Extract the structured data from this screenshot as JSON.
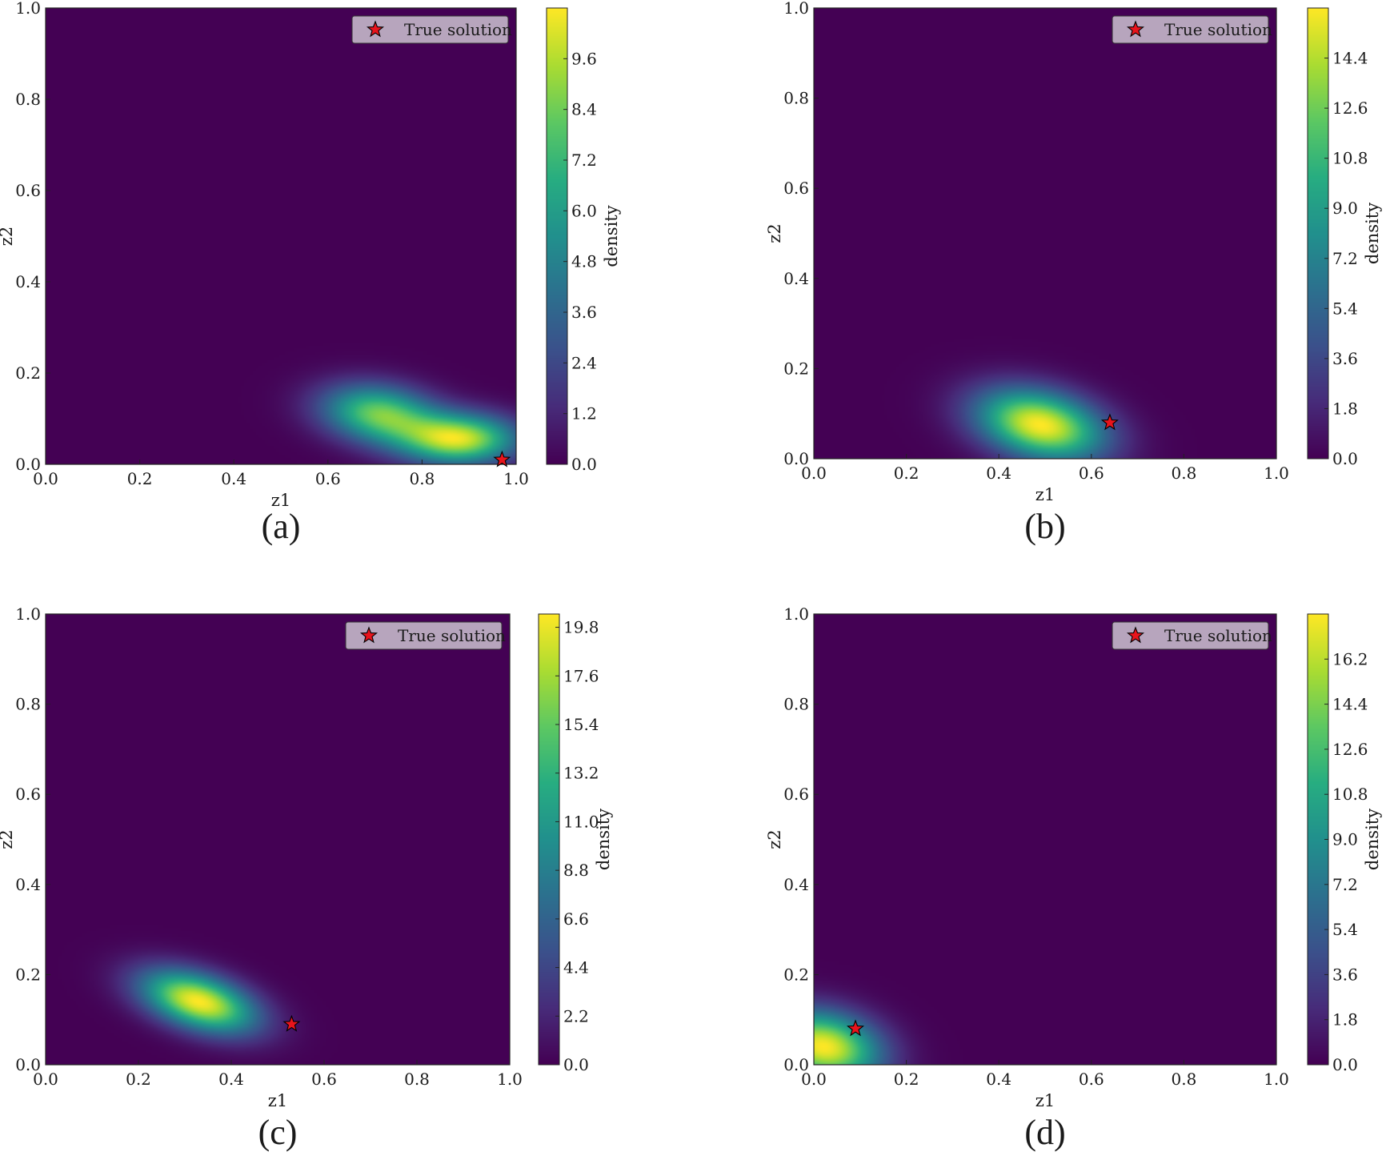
{
  "colors": {
    "cmap": "viridis",
    "background": "#440154",
    "star_fill": "#e8141c",
    "star_stroke": "#000000",
    "legend_bg": "#b7a5bd"
  },
  "chart_data": [
    {
      "type": "heatmap",
      "caption": "(a)",
      "xlabel": "z1",
      "ylabel": "z2",
      "xlim": [
        0,
        1
      ],
      "ylim": [
        0,
        1
      ],
      "xticks": [
        "0.0",
        "0.2",
        "0.4",
        "0.6",
        "0.8",
        "1.0"
      ],
      "yticks": [
        "0.0",
        "0.2",
        "0.4",
        "0.6",
        "0.8",
        "1.0"
      ],
      "colorbar": {
        "label": "density",
        "range": [
          0,
          10.8
        ],
        "ticks": [
          "0.0",
          "1.2",
          "2.4",
          "3.6",
          "4.8",
          "6.0",
          "7.2",
          "8.4",
          "9.6"
        ]
      },
      "legend": {
        "label": "True solution",
        "position": "top-right"
      },
      "true_solution": {
        "z1": 0.97,
        "z2": 0.01
      },
      "density_components": [
        {
          "mu": [
            0.71,
            0.11
          ],
          "sigma": [
            0.085,
            0.045
          ],
          "rho": -0.2,
          "weight": 0.85
        },
        {
          "mu": [
            0.88,
            0.055
          ],
          "sigma": [
            0.085,
            0.038
          ],
          "rho": 0.0,
          "weight": 1.0
        }
      ]
    },
    {
      "type": "heatmap",
      "caption": "(b)",
      "xlabel": "z1",
      "ylabel": "z2",
      "xlim": [
        0,
        1
      ],
      "ylim": [
        0,
        1
      ],
      "xticks": [
        "0.0",
        "0.2",
        "0.4",
        "0.6",
        "0.8",
        "1.0"
      ],
      "yticks": [
        "0.0",
        "0.2",
        "0.4",
        "0.6",
        "0.8",
        "1.0"
      ],
      "colorbar": {
        "label": "density",
        "range": [
          0,
          16.2
        ],
        "ticks": [
          "0.0",
          "1.8",
          "3.6",
          "5.4",
          "7.2",
          "9.0",
          "10.8",
          "12.6",
          "14.4"
        ]
      },
      "legend": {
        "label": "True solution",
        "position": "top-right"
      },
      "true_solution": {
        "z1": 0.64,
        "z2": 0.08
      },
      "density_components": [
        {
          "mu": [
            0.49,
            0.075
          ],
          "sigma": [
            0.095,
            0.055
          ],
          "rho": -0.3,
          "weight": 1.0
        }
      ]
    },
    {
      "type": "heatmap",
      "caption": "(c)",
      "xlabel": "z1",
      "ylabel": "z2",
      "xlim": [
        0,
        1
      ],
      "ylim": [
        0,
        1
      ],
      "xticks": [
        "0.0",
        "0.2",
        "0.4",
        "0.6",
        "0.8",
        "1.0"
      ],
      "yticks": [
        "0.0",
        "0.2",
        "0.4",
        "0.6",
        "0.8",
        "1.0"
      ],
      "colorbar": {
        "label": "density",
        "range": [
          0,
          20.4
        ],
        "ticks": [
          "0.0",
          "2.2",
          "4.4",
          "6.6",
          "8.8",
          "11.0",
          "13.2",
          "15.4",
          "17.6",
          "19.8"
        ]
      },
      "legend": {
        "label": "True solution",
        "position": "top-right"
      },
      "true_solution": {
        "z1": 0.53,
        "z2": 0.09
      },
      "density_components": [
        {
          "mu": [
            0.33,
            0.14
          ],
          "sigma": [
            0.085,
            0.048
          ],
          "rho": -0.45,
          "weight": 1.0
        }
      ]
    },
    {
      "type": "heatmap",
      "caption": "(d)",
      "xlabel": "z1",
      "ylabel": "z2",
      "xlim": [
        0,
        1
      ],
      "ylim": [
        0,
        1
      ],
      "xticks": [
        "0.0",
        "0.2",
        "0.4",
        "0.6",
        "0.8",
        "1.0"
      ],
      "yticks": [
        "0.0",
        "0.2",
        "0.4",
        "0.6",
        "0.8",
        "1.0"
      ],
      "colorbar": {
        "label": "density",
        "range": [
          0,
          18.0
        ],
        "ticks": [
          "0.0",
          "1.8",
          "3.6",
          "5.4",
          "7.2",
          "9.0",
          "10.8",
          "12.6",
          "14.4",
          "16.2"
        ]
      },
      "legend": {
        "label": "True solution",
        "position": "top-right"
      },
      "true_solution": {
        "z1": 0.09,
        "z2": 0.08
      },
      "density_components": [
        {
          "mu": [
            0.02,
            0.04
          ],
          "sigma": [
            0.085,
            0.055
          ],
          "rho": -0.2,
          "weight": 1.0
        }
      ]
    }
  ]
}
